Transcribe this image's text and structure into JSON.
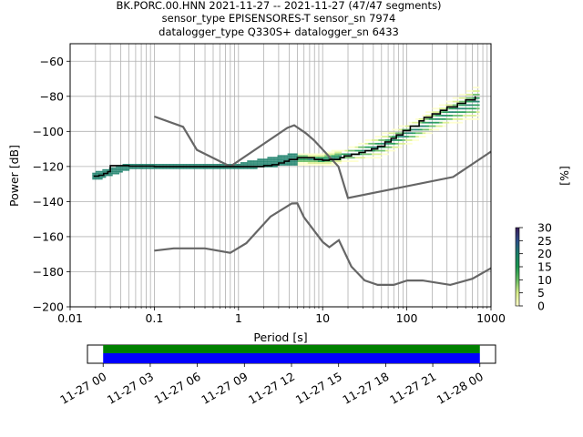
{
  "title_lines": [
    "BK.PORC.00.HNN   2021-11-27 -- 2021-11-27  (47/47 segments)",
    "sensor_type EPISENSORES-T sensor_sn 7974",
    "datalogger_type Q330S+ datalogger_sn 6433"
  ],
  "colorbar": {
    "label": "[%]",
    "ticks": [
      "0",
      "5",
      "10",
      "15",
      "20",
      "25",
      "30"
    ],
    "range": [
      0,
      30
    ],
    "colors": [
      "#ffffcc",
      "#d9ef8b",
      "#66bd63",
      "#1a9850",
      "#1b7f6a",
      "#2c4f8a",
      "#3b1d5a"
    ]
  },
  "chart_data": {
    "type": "line",
    "xlabel": "Period [s]",
    "ylabel": "Power [dB]",
    "xscale": "log",
    "xlim": [
      0.01,
      1000
    ],
    "ylim": [
      -200,
      -50
    ],
    "x_tick_labels": [
      "0.01",
      "0.1",
      "1",
      "10",
      "100",
      "1000"
    ],
    "y_tick_labels": [
      "−60",
      "−80",
      "−100",
      "−120",
      "−140",
      "−160",
      "−180",
      "−200"
    ],
    "y_ticks": [
      -60,
      -80,
      -100,
      -120,
      -140,
      -160,
      -180,
      -200
    ],
    "grid": true,
    "noise_models": [
      {
        "points": [
          [
            0.1,
            -91.5
          ],
          [
            0.22,
            -97.4
          ],
          [
            0.32,
            -110.5
          ],
          [
            0.8,
            -120
          ],
          [
            3.8,
            -98
          ],
          [
            4.6,
            -96.5
          ],
          [
            6.3,
            -101
          ],
          [
            7.9,
            -105
          ],
          [
            15.4,
            -120
          ],
          [
            20,
            -138
          ],
          [
            354.8,
            -126
          ],
          [
            1000,
            -111.5
          ]
        ]
      },
      {
        "points": [
          [
            0.1,
            -168
          ],
          [
            0.17,
            -166.7
          ],
          [
            0.4,
            -166.7
          ],
          [
            0.8,
            -169.2
          ],
          [
            1.24,
            -163.7
          ],
          [
            2.4,
            -148.6
          ],
          [
            4.3,
            -141.1
          ],
          [
            5,
            -141
          ],
          [
            6,
            -149
          ],
          [
            10,
            -163
          ],
          [
            12,
            -166
          ],
          [
            15.6,
            -162
          ],
          [
            21.9,
            -177
          ],
          [
            31.6,
            -185
          ],
          [
            45,
            -187.5
          ],
          [
            70,
            -187.5
          ],
          [
            101,
            -185
          ],
          [
            154,
            -185
          ],
          [
            328,
            -187.5
          ],
          [
            600,
            -184
          ],
          [
            1000,
            -178
          ]
        ]
      }
    ],
    "mode_line": {
      "points": [
        [
          0.019,
          -125.5
        ],
        [
          0.022,
          -125
        ],
        [
          0.025,
          -124
        ],
        [
          0.028,
          -123
        ],
        [
          0.03,
          -119.5
        ],
        [
          0.05,
          -119.8
        ],
        [
          0.1,
          -120
        ],
        [
          1,
          -120
        ],
        [
          2,
          -119.5
        ],
        [
          2.5,
          -119
        ],
        [
          3,
          -118
        ],
        [
          3.5,
          -117
        ],
        [
          4,
          -116
        ],
        [
          5,
          -115
        ],
        [
          6,
          -115
        ],
        [
          8,
          -116
        ],
        [
          10,
          -116.5
        ],
        [
          12,
          -116
        ],
        [
          14,
          -116
        ],
        [
          16,
          -115
        ],
        [
          18,
          -114
        ],
        [
          22,
          -113
        ],
        [
          27,
          -112
        ],
        [
          32,
          -111
        ],
        [
          38,
          -110
        ],
        [
          45,
          -108.5
        ],
        [
          55,
          -106
        ],
        [
          65,
          -104
        ],
        [
          75,
          -102
        ],
        [
          90,
          -99.5
        ],
        [
          110,
          -97
        ],
        [
          140,
          -94
        ],
        [
          160,
          -92
        ],
        [
          200,
          -90
        ],
        [
          250,
          -88
        ],
        [
          300,
          -86
        ],
        [
          400,
          -84
        ],
        [
          500,
          -82
        ],
        [
          650,
          -80
        ]
      ]
    },
    "pdf_spread_db": [
      {
        "period": 0.02,
        "low": -127,
        "high": -124
      },
      {
        "period": 0.05,
        "low": -121,
        "high": -119
      },
      {
        "period": 1,
        "low": -121,
        "high": -119
      },
      {
        "period": 5,
        "low": -118,
        "high": -113
      },
      {
        "period": 10,
        "low": -119,
        "high": -113
      },
      {
        "period": 20,
        "low": -117,
        "high": -110
      },
      {
        "period": 50,
        "low": -114,
        "high": -102
      },
      {
        "period": 100,
        "low": -107,
        "high": -96
      },
      {
        "period": 300,
        "low": -96,
        "high": -84
      },
      {
        "period": 700,
        "low": -92,
        "high": -74
      }
    ]
  },
  "timeline": {
    "tick_labels": [
      "11-27 00",
      "11-27 03",
      "11-27 06",
      "11-27 09",
      "11-27 12",
      "11-27 15",
      "11-27 18",
      "11-27 21",
      "11-28 00"
    ],
    "span_hours": [
      -1.0,
      25.0
    ],
    "bar_hours": [
      0,
      24
    ],
    "bar_colors": [
      "#008000",
      "#0000ff"
    ]
  }
}
